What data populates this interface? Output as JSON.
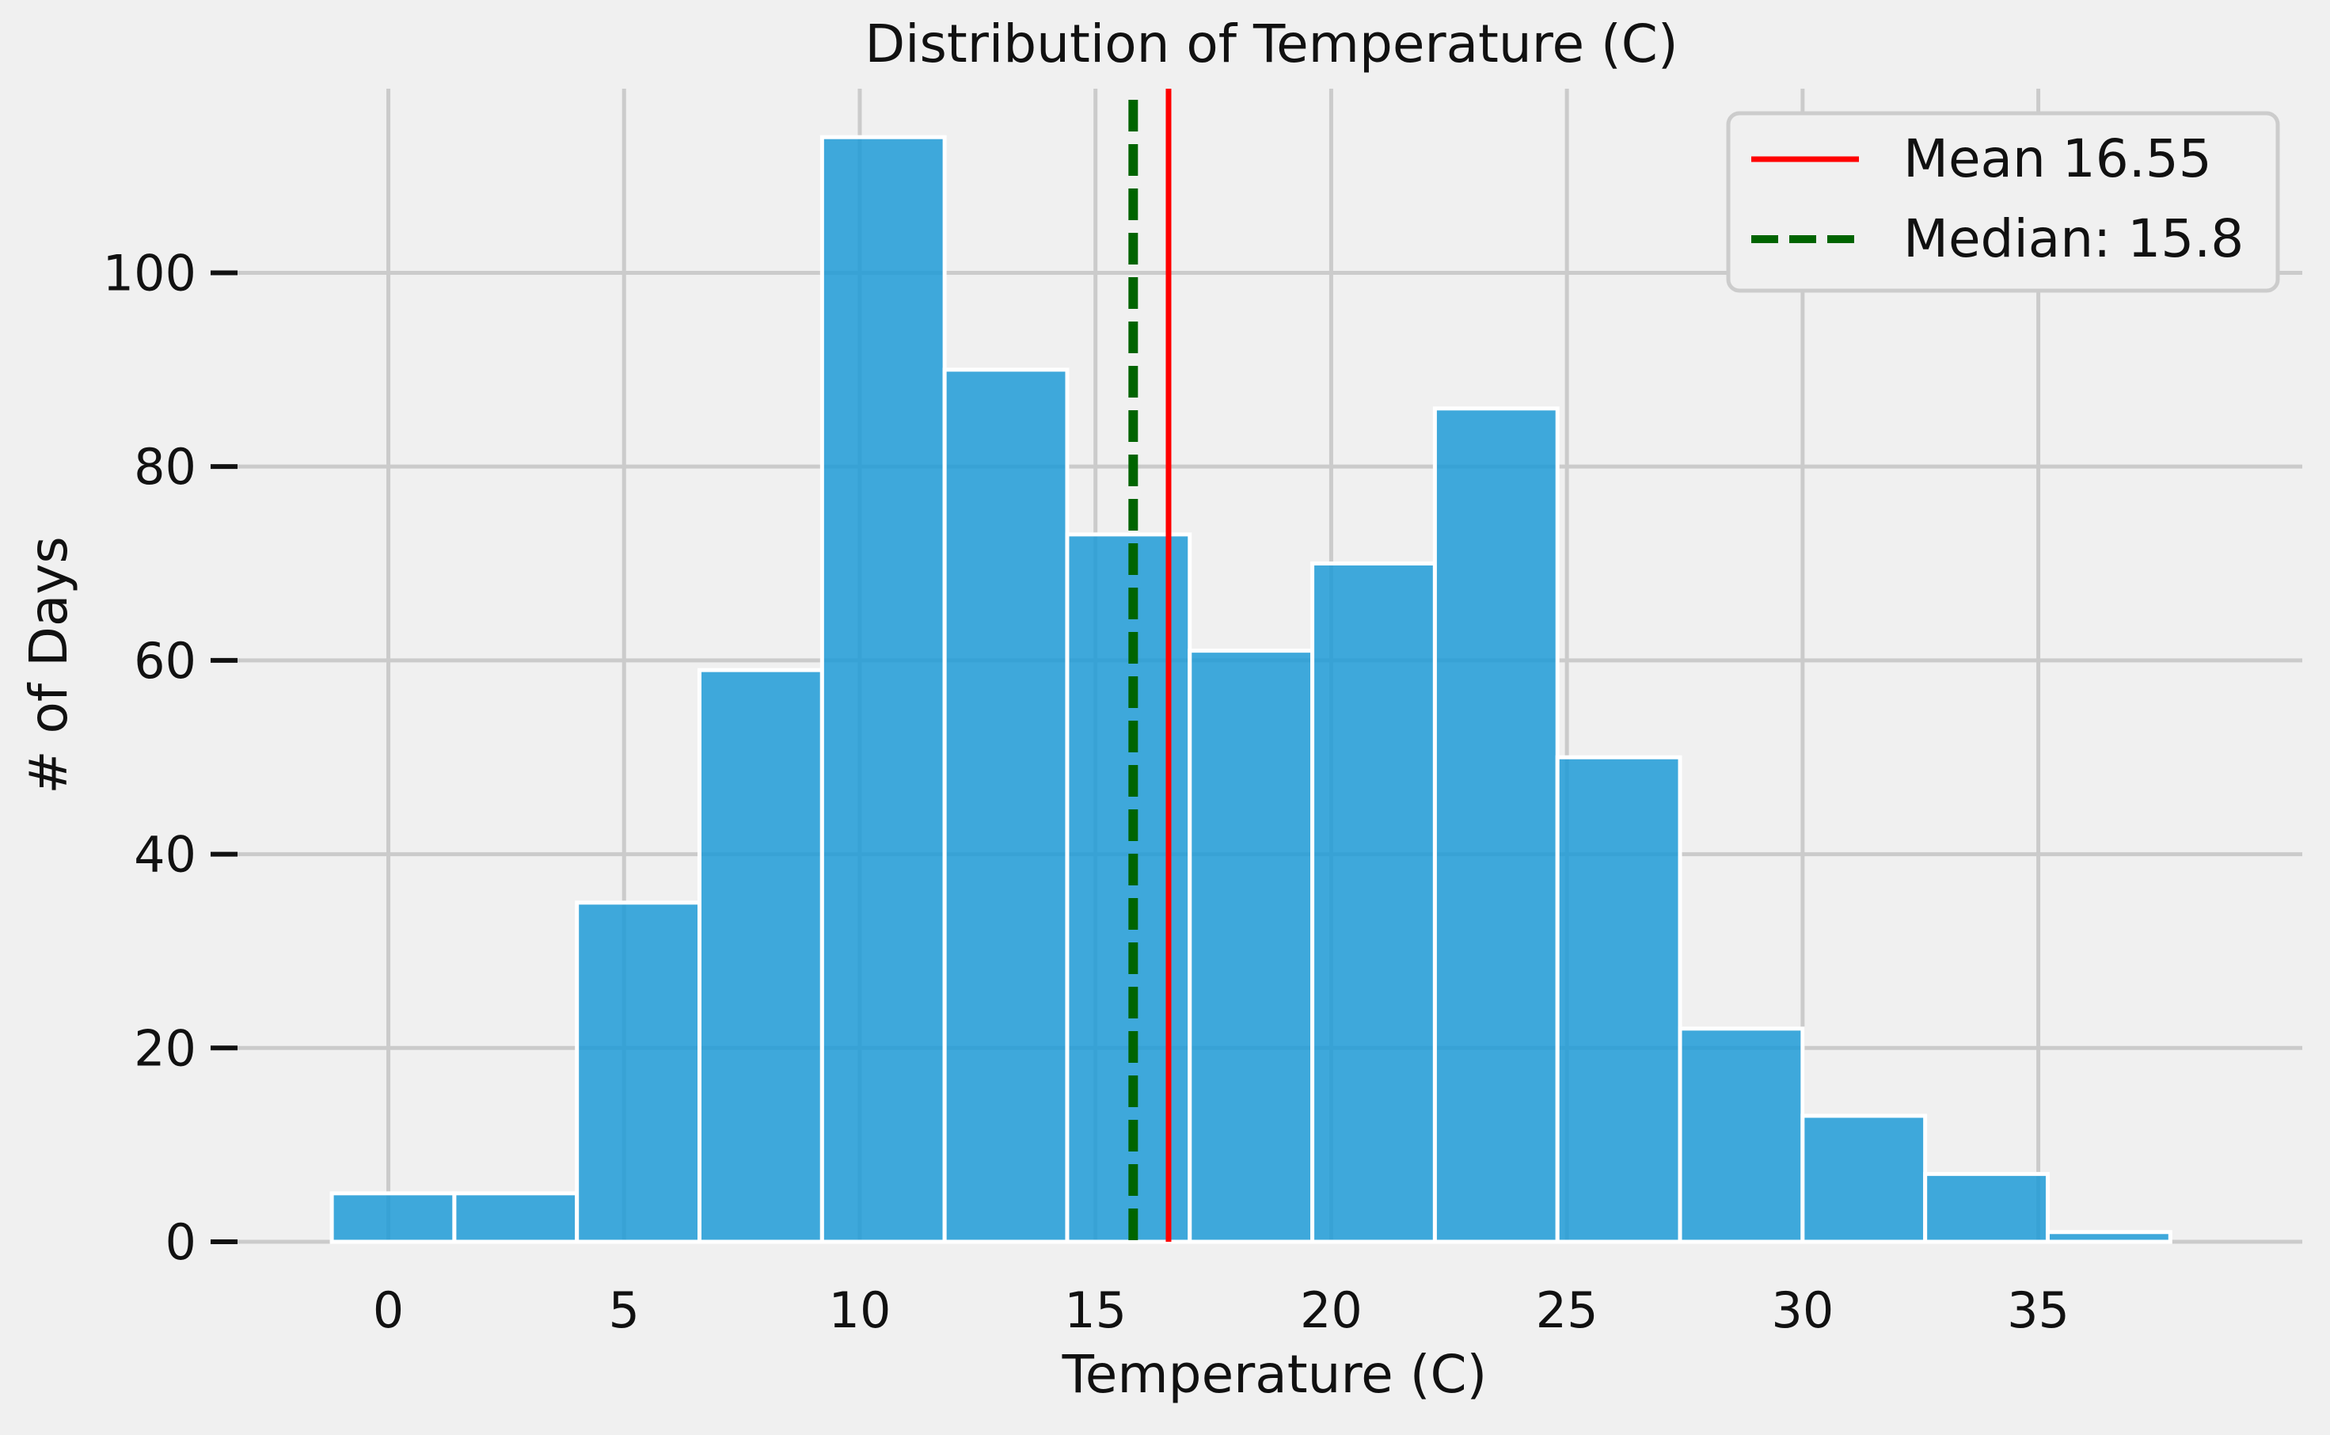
{
  "chart_data": {
    "type": "bar",
    "title": "Distribution of Temperature (C)",
    "xlabel": "Temperature (C)",
    "ylabel": "# of Days",
    "xlim": [
      -3.2,
      40.6
    ],
    "ylim": [
      0,
      119
    ],
    "xticks": [
      0,
      5,
      10,
      15,
      20,
      25,
      30,
      35
    ],
    "yticks": [
      0,
      20,
      40,
      60,
      80,
      100
    ],
    "grid": true,
    "legend_position": "top-right",
    "bins": [
      {
        "x0": -1.2,
        "x1": 1.4,
        "count": 5
      },
      {
        "x0": 1.4,
        "x1": 4.0,
        "count": 5
      },
      {
        "x0": 4.0,
        "x1": 6.6,
        "count": 35
      },
      {
        "x0": 6.6,
        "x1": 9.2,
        "count": 59
      },
      {
        "x0": 9.2,
        "x1": 11.8,
        "count": 114
      },
      {
        "x0": 11.8,
        "x1": 14.4,
        "count": 90
      },
      {
        "x0": 14.4,
        "x1": 17.0,
        "count": 73
      },
      {
        "x0": 17.0,
        "x1": 19.6,
        "count": 61
      },
      {
        "x0": 19.6,
        "x1": 22.2,
        "count": 70
      },
      {
        "x0": 22.2,
        "x1": 24.8,
        "count": 86
      },
      {
        "x0": 24.8,
        "x1": 27.4,
        "count": 50
      },
      {
        "x0": 27.4,
        "x1": 30.0,
        "count": 22
      },
      {
        "x0": 30.0,
        "x1": 32.6,
        "count": 13
      },
      {
        "x0": 32.6,
        "x1": 35.2,
        "count": 7
      },
      {
        "x0": 35.2,
        "x1": 37.8,
        "count": 1
      }
    ],
    "bar_color": "#1f9bd7",
    "mean": {
      "value": 16.55,
      "label": "Mean 16.55",
      "color": "#ff0000",
      "style": "solid"
    },
    "median": {
      "value": 15.8,
      "label": "Median: 15.8",
      "color": "#006400",
      "style": "dashed"
    }
  }
}
